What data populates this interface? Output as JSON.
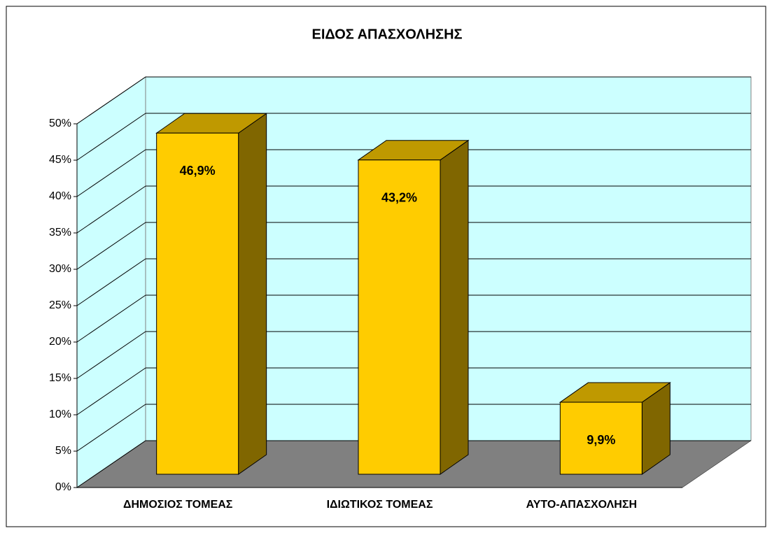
{
  "chart_data": {
    "type": "bar3d",
    "title": "ΕΙΔΟΣ ΑΠΑΣΧΟΛΗΣΗΣ",
    "categories": [
      "ΔΗΜΟΣΙΟΣ ΤΟΜΕΑΣ",
      "ΙΔΙΩΤΙΚΟΣ ΤΟΜΕΑΣ",
      "ΑΥΤΟ-ΑΠΑΣΧΟΛΗΣΗ"
    ],
    "values": [
      46.9,
      43.2,
      9.9
    ],
    "value_labels": [
      "46,9%",
      "43,2%",
      "9,9%"
    ],
    "color": "#ffcc00",
    "ylim": [
      0,
      50
    ],
    "yticks": [
      {
        "value": 0,
        "label": "0%"
      },
      {
        "value": 5,
        "label": "5%"
      },
      {
        "value": 10,
        "label": "10%"
      },
      {
        "value": 15,
        "label": "15%"
      },
      {
        "value": 20,
        "label": "20%"
      },
      {
        "value": 25,
        "label": "25%"
      },
      {
        "value": 30,
        "label": "30%"
      },
      {
        "value": 35,
        "label": "35%"
      },
      {
        "value": 40,
        "label": "40%"
      },
      {
        "value": 45,
        "label": "45%"
      },
      {
        "value": 50,
        "label": "50%"
      }
    ],
    "grid": true
  }
}
